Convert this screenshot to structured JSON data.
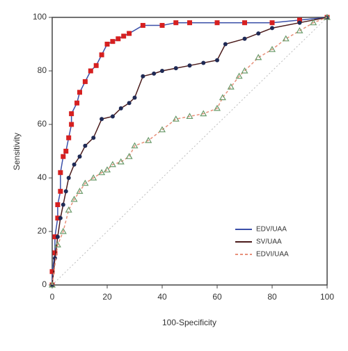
{
  "chart_data": {
    "type": "line",
    "xlabel": "100-Specificity",
    "ylabel": "Sensitivity",
    "xlim": [
      0,
      100
    ],
    "ylim": [
      0,
      100
    ],
    "xticks": [
      0,
      20,
      40,
      60,
      80,
      100
    ],
    "yticks": [
      0,
      20,
      40,
      60,
      80,
      100
    ],
    "legend": "lower right",
    "series": [
      {
        "name": "EDV/UAA",
        "color": "#3a4fa8",
        "marker_color": "#d62020",
        "marker": "square",
        "dash": false,
        "x": [
          0,
          0,
          1,
          1,
          2,
          2,
          3,
          3,
          4,
          5,
          6,
          7,
          7,
          9,
          10,
          12,
          14,
          16,
          18,
          20,
          22,
          24,
          26,
          28,
          33,
          40,
          45,
          50,
          60,
          70,
          80,
          90,
          100
        ],
        "values": [
          0,
          5,
          12,
          18,
          25,
          30,
          35,
          42,
          48,
          50,
          55,
          60,
          64,
          68,
          72,
          76,
          80,
          82,
          86,
          90,
          91,
          92,
          93,
          94,
          97,
          97,
          98,
          98,
          98,
          98,
          98,
          99,
          100
        ]
      },
      {
        "name": "SV/UAA",
        "color": "#4a1a1a",
        "marker_color": "#1f2a55",
        "marker": "circle",
        "dash": false,
        "x": [
          0,
          1,
          2,
          3,
          4,
          5,
          6,
          8,
          10,
          12,
          15,
          18,
          22,
          25,
          28,
          30,
          33,
          37,
          40,
          45,
          50,
          55,
          60,
          63,
          70,
          75,
          80,
          90,
          100
        ],
        "values": [
          0,
          10,
          18,
          25,
          30,
          35,
          40,
          45,
          48,
          52,
          55,
          62,
          63,
          66,
          68,
          70,
          78,
          79,
          80,
          81,
          82,
          83,
          84,
          90,
          92,
          94,
          96,
          98,
          100
        ]
      },
      {
        "name": "EDVI/UAA",
        "color": "#e8907a",
        "marker_color": "#6a9a6a",
        "marker": "triangle",
        "dash": true,
        "x": [
          0,
          2,
          4,
          6,
          8,
          10,
          12,
          15,
          18,
          20,
          22,
          25,
          28,
          30,
          35,
          40,
          45,
          50,
          55,
          60,
          62,
          65,
          68,
          70,
          75,
          80,
          85,
          90,
          95,
          100
        ],
        "values": [
          0,
          15,
          20,
          28,
          32,
          35,
          38,
          40,
          42,
          43,
          45,
          46,
          48,
          52,
          54,
          58,
          62,
          63,
          64,
          66,
          70,
          74,
          78,
          80,
          85,
          88,
          92,
          95,
          98,
          100
        ]
      }
    ]
  }
}
